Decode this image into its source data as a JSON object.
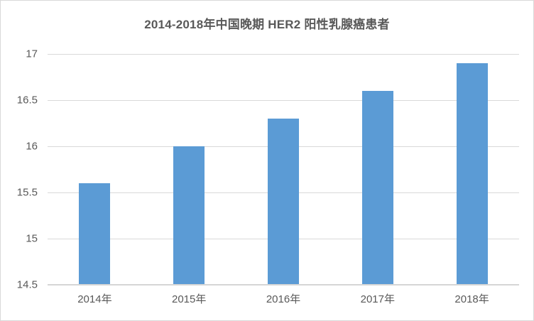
{
  "chart_data": {
    "type": "bar",
    "title": "2014-2018年中国晚期 HER2 阳性乳腺癌患者",
    "categories": [
      "2014年",
      "2015年",
      "2016年",
      "2017年",
      "2018年"
    ],
    "values": [
      15.6,
      16,
      16.3,
      16.6,
      16.9
    ],
    "xlabel": "",
    "ylabel": "",
    "ylim": [
      14.5,
      17
    ],
    "ytick_step": 0.5,
    "ytick_labels": [
      "14.5",
      "15",
      "15.5",
      "16",
      "16.5",
      "17"
    ],
    "grid": true,
    "legend": "none",
    "colors": {
      "bar": "#5b9bd5",
      "gridline": "#d9d9d9",
      "axis_line": "#d6d6d6",
      "text": "#595959",
      "title_text": "#595959",
      "frame_border": "#d9d9d9",
      "background": "#ffffff"
    }
  }
}
